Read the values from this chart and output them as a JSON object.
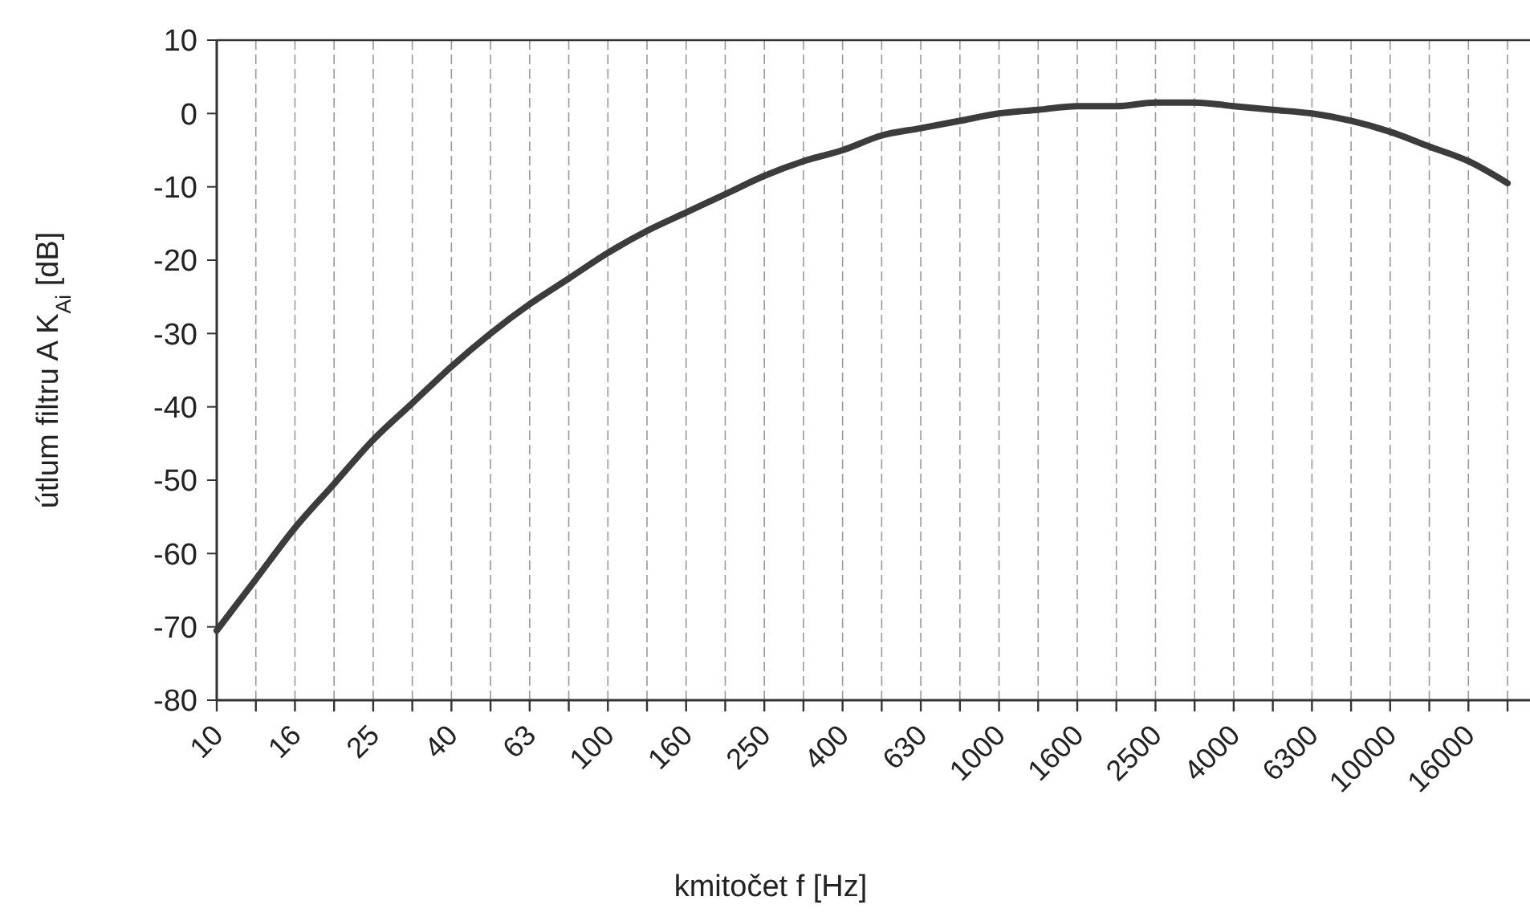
{
  "chart_data": {
    "type": "line",
    "xlabel": "kmitočet f [Hz]",
    "ylabel": "útlum filtru A K$_{Ai}$ [dB]",
    "categories": [
      "10",
      null,
      "16",
      null,
      "25",
      null,
      "40",
      null,
      "63",
      null,
      "100",
      null,
      "160",
      null,
      "250",
      null,
      "400",
      null,
      "630",
      null,
      "1000",
      null,
      "1600",
      null,
      "2500",
      null,
      "4000",
      null,
      "6300",
      null,
      "10000",
      null,
      "16000",
      null
    ],
    "series": [
      {
        "color": "#3c3c3c",
        "values": [
          -70.5,
          -63.5,
          -56.5,
          -50.5,
          -44.5,
          -39.5,
          -34.5,
          -30,
          -26,
          -22.5,
          -19,
          -16,
          -13.5,
          -11,
          -8.5,
          -6.5,
          -5,
          -3,
          -2,
          -1,
          0,
          0.5,
          1,
          1,
          1.5,
          1.5,
          1,
          0.5,
          0,
          -1,
          -2.5,
          -4.5,
          -6.5,
          -9.5
        ]
      }
    ],
    "ylim": [
      -80,
      10
    ],
    "yticks": [
      -80,
      -70,
      -60,
      -50,
      -40,
      -30,
      -20,
      -10,
      0,
      10
    ],
    "grid": "x",
    "marker": "none",
    "line_style": "solid"
  }
}
